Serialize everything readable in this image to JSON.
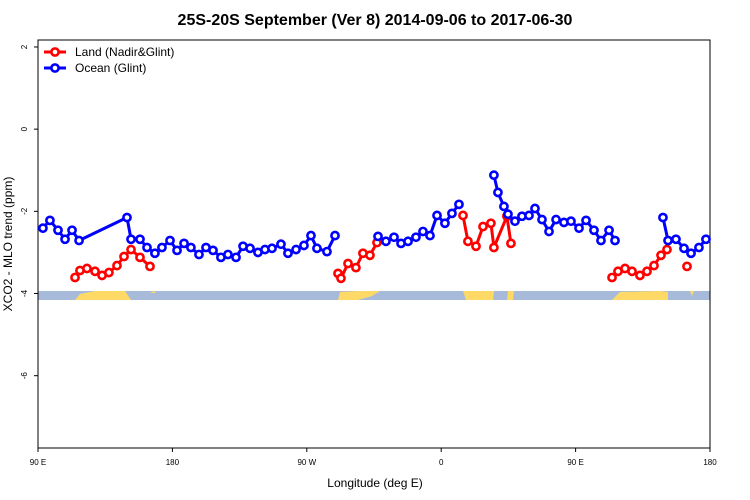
{
  "chart_data": {
    "type": "line",
    "title": "25S-20S September (Ver 8)   2014-09-06 to 2017-06-30",
    "x_label": "Longitude (deg E)",
    "y_label": "XCO2 - MLO trend (ppm)",
    "xlim": [
      90,
      540
    ],
    "xticks": [
      {
        "value": 90,
        "label": "90 E"
      },
      {
        "value": 180,
        "label": "180"
      },
      {
        "value": 270,
        "label": "90 W"
      },
      {
        "value": 360,
        "label": "0"
      },
      {
        "value": 450,
        "label": "90 E"
      },
      {
        "value": 540,
        "label": "180"
      }
    ],
    "ylim": [
      -7.76,
      2.17
    ],
    "yticks": [
      2,
      0,
      -2,
      -4,
      -6
    ],
    "legend": "top-left",
    "series": [
      {
        "name": "Land (Nadir&Glint)",
        "color": "#ff0000",
        "x": [
          114.8,
          118.1,
          122.8,
          128.2,
          132.9,
          137.5,
          142.9,
          147.6,
          152.3,
          158.3,
          165.0,
          null,
          290.9,
          292.9,
          297.6,
          302.9,
          307.6,
          312.3,
          317.0,
          null,
          374.6,
          377.9,
          383.3,
          388.0,
          393.3,
          395.3,
          404.0,
          406.7,
          null,
          474.4,
          478.4,
          483.1,
          487.8,
          493.1,
          497.8,
          502.5,
          507.2,
          511.2,
          null,
          524.6
        ],
        "values": [
          -3.61,
          -3.44,
          -3.39,
          -3.46,
          -3.56,
          -3.49,
          -3.32,
          -3.1,
          -2.93,
          -3.12,
          -3.34,
          null,
          -3.51,
          -3.63,
          -3.27,
          -3.37,
          -3.02,
          -3.07,
          -2.76,
          null,
          -2.1,
          -2.73,
          -2.85,
          -2.37,
          -2.29,
          -2.88,
          -2.12,
          -2.78,
          null,
          -3.61,
          -3.46,
          -3.39,
          -3.46,
          -3.56,
          -3.46,
          -3.32,
          -3.07,
          -2.93,
          null,
          -3.34
        ]
      },
      {
        "name": "Ocean (Glint)",
        "color": "#0000ff",
        "x": [
          93.3,
          98.0,
          103.4,
          108.1,
          112.8,
          117.5,
          149.6,
          152.3,
          158.3,
          163.0,
          168.3,
          173.0,
          178.4,
          183.1,
          187.8,
          192.4,
          197.8,
          202.5,
          207.2,
          212.5,
          217.2,
          222.6,
          227.3,
          232.0,
          237.3,
          242.0,
          246.7,
          252.7,
          257.4,
          262.8,
          268.1,
          272.8,
          276.8,
          283.5,
          288.9,
          null,
          317.7,
          323.0,
          328.4,
          333.1,
          337.8,
          343.1,
          347.8,
          352.5,
          357.2,
          362.5,
          367.2,
          371.9,
          null,
          395.3,
          398.0,
          402.0,
          404.7,
          409.4,
          414.1,
          418.8,
          422.8,
          427.5,
          432.2,
          436.9,
          442.2,
          446.9,
          452.3,
          457.0,
          462.3,
          467.0,
          472.4,
          476.4,
          null,
          508.5,
          511.9,
          517.2,
          522.6,
          527.3,
          532.6,
          537.3
        ],
        "values": [
          -2.41,
          -2.22,
          -2.46,
          -2.68,
          -2.46,
          -2.71,
          -2.15,
          -2.68,
          -2.68,
          -2.88,
          -3.02,
          -2.88,
          -2.71,
          -2.95,
          -2.78,
          -2.88,
          -3.05,
          -2.88,
          -2.95,
          -3.12,
          -3.05,
          -3.12,
          -2.85,
          -2.9,
          -3.0,
          -2.93,
          -2.9,
          -2.8,
          -3.02,
          -2.93,
          -2.83,
          -2.59,
          -2.9,
          -2.98,
          -2.59,
          null,
          -2.61,
          -2.73,
          -2.63,
          -2.78,
          -2.73,
          -2.63,
          -2.49,
          -2.59,
          -2.1,
          -2.29,
          -2.05,
          -1.83,
          null,
          -1.12,
          -1.54,
          -1.88,
          -2.07,
          -2.24,
          -2.12,
          -2.1,
          -1.93,
          -2.2,
          -2.49,
          -2.2,
          -2.27,
          -2.24,
          -2.41,
          -2.22,
          -2.46,
          -2.71,
          -2.46,
          -2.71,
          null,
          -2.15,
          -2.71,
          -2.68,
          -2.9,
          -3.02,
          -2.88,
          -2.68
        ]
      }
    ]
  }
}
